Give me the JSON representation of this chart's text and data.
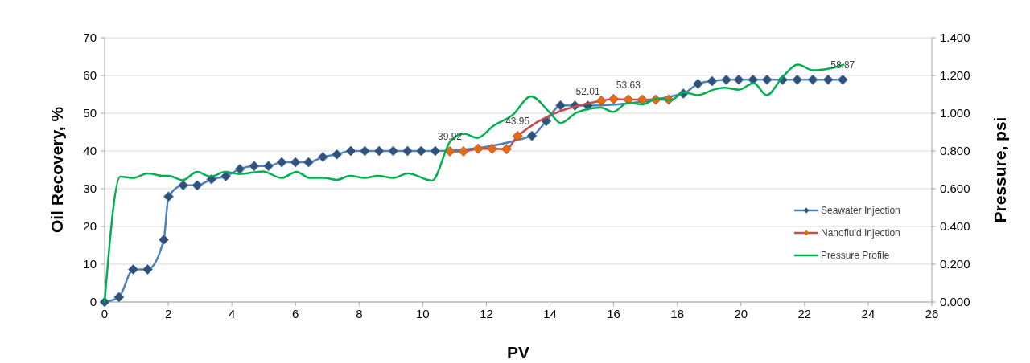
{
  "chart_data": {
    "type": "line",
    "xlabel": "PV",
    "ylabel": "Oil Recovery, %",
    "y2label": "Pressure, psi",
    "xlim": [
      0,
      26
    ],
    "xticks": [
      0,
      2,
      4,
      6,
      8,
      10,
      12,
      14,
      16,
      18,
      20,
      22,
      24,
      26
    ],
    "ylim": [
      0,
      70
    ],
    "yticks": [
      0,
      10,
      20,
      30,
      40,
      50,
      60,
      70
    ],
    "y2lim": [
      0,
      1.4
    ],
    "y2ticks": [
      {
        "value": 0,
        "label": "0.000"
      },
      {
        "value": 0.2,
        "label": "0.200"
      },
      {
        "value": 0.4,
        "label": "0.400"
      },
      {
        "value": 0.6,
        "label": "0.600"
      },
      {
        "value": 0.8,
        "label": "0.800"
      },
      {
        "value": 1,
        "label": "1.000"
      },
      {
        "value": 1.2,
        "label": "1.200"
      },
      {
        "value": 1.4,
        "label": "1.400"
      }
    ],
    "grid": "y",
    "legend": "right",
    "series": [
      {
        "name": "Seawater Injection",
        "color": "#4f81bd",
        "marker": "diamond",
        "x": [
          0,
          0.45,
          0.9,
          1.35,
          1.86,
          2.01,
          2.47,
          2.91,
          3.36,
          3.81,
          4.25,
          4.7,
          5.15,
          5.57,
          6.0,
          6.41,
          6.86,
          7.3,
          7.74,
          8.18,
          8.63,
          9.07,
          9.52,
          9.95,
          10.39,
          13.43,
          13.88,
          14.33,
          14.78,
          15.19,
          18.19,
          18.65,
          19.09,
          19.54,
          19.93,
          20.38,
          20.82,
          21.31,
          21.77,
          22.26,
          22.74,
          23.2
        ],
        "values": [
          0,
          1.3,
          8.6,
          8.6,
          16.5,
          27.9,
          30.9,
          30.9,
          32.5,
          33.3,
          35.2,
          36,
          36,
          37,
          37,
          37,
          38.4,
          39.1,
          40,
          40,
          40,
          40,
          40,
          40,
          40,
          44,
          47.9,
          52.1,
          52,
          52.01,
          55.2,
          57.8,
          58.5,
          58.87,
          58.87,
          58.87,
          58.87,
          58.87,
          58.87,
          58.87,
          58.87,
          58.87
        ]
      },
      {
        "name": "Nanofluid Injection",
        "color": "#c0504d",
        "marker": "diamond",
        "x": [
          10.85,
          11.28,
          11.74,
          12.18,
          12.63,
          12.98,
          15.61,
          16.0,
          16.46,
          16.9,
          17.32,
          17.73
        ],
        "values": [
          39.92,
          39.9,
          40.6,
          40.6,
          40.5,
          43.95,
          53.3,
          53.76,
          53.63,
          53.6,
          53.6,
          53.6
        ]
      },
      {
        "name": "Pressure Profile",
        "color": "#00b050",
        "marker": "none",
        "axis": "y2",
        "x": [
          0,
          0.49,
          0.89,
          1.35,
          1.85,
          2.02,
          2.45,
          2.91,
          3.33,
          3.79,
          4.24,
          4.97,
          5.56,
          6.03,
          6.45,
          6.91,
          7.29,
          7.71,
          8.18,
          8.6,
          9.06,
          9.53,
          10.29,
          10.88,
          11.3,
          11.71,
          12.22,
          12.82,
          13.4,
          13.99,
          14.33,
          14.84,
          15.6,
          15.98,
          16.44,
          16.9,
          17.37,
          17.78,
          18.21,
          18.63,
          19.14,
          19.47,
          19.94,
          20.4,
          20.81,
          21.33,
          21.79,
          22.26,
          22.84,
          23.22
        ],
        "values": [
          0,
          0.664,
          0.657,
          0.681,
          0.668,
          0.668,
          0.645,
          0.689,
          0.664,
          0.689,
          0.678,
          0.692,
          0.657,
          0.689,
          0.657,
          0.657,
          0.647,
          0.668,
          0.657,
          0.668,
          0.657,
          0.681,
          0.643,
          0.855,
          0.891,
          0.869,
          0.933,
          0.99,
          1.089,
          1.004,
          0.948,
          1.004,
          1.03,
          1.007,
          1.054,
          1.047,
          1.078,
          1.068,
          1.111,
          1.096,
          1.125,
          1.135,
          1.125,
          1.16,
          1.096,
          1.196,
          1.257,
          1.228,
          1.238,
          1.257
        ]
      }
    ],
    "annotations": [
      {
        "text": "39.92",
        "x": 10.85,
        "y": 39.92
      },
      {
        "text": "43.95",
        "x": 12.98,
        "y": 43.95
      },
      {
        "text": "52.01",
        "x": 15.19,
        "y": 52.01
      },
      {
        "text": "53.63",
        "x": 16.46,
        "y": 53.63
      },
      {
        "text": "58.87",
        "x": 23.2,
        "y": 58.87
      }
    ]
  }
}
